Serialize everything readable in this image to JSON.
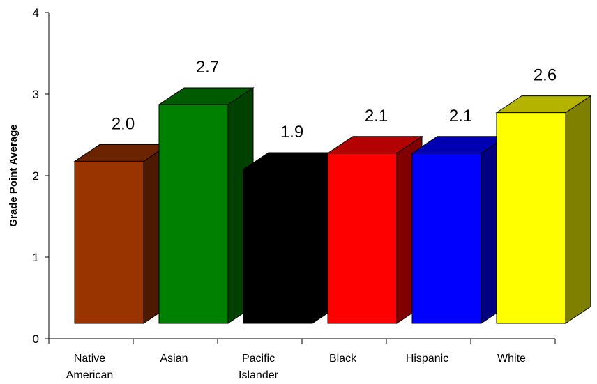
{
  "chart_data": {
    "type": "bar",
    "title": "",
    "xlabel": "",
    "ylabel": "Grade Point Average",
    "ylim": [
      0,
      4
    ],
    "yticks": [
      "0",
      "1",
      "2",
      "3",
      "4"
    ],
    "grid": false,
    "legend": "none",
    "style": "3d",
    "categories": [
      [
        "Native",
        "American"
      ],
      [
        "Asian"
      ],
      [
        "Pacific",
        "Islander"
      ],
      [
        "Black"
      ],
      [
        "Hispanic"
      ],
      [
        "White"
      ]
    ],
    "values": [
      2.0,
      2.7,
      1.9,
      2.1,
      2.1,
      2.6
    ],
    "data_labels": [
      "2.0",
      "2.7",
      "1.9",
      "2.1",
      "2.1",
      "2.6"
    ],
    "colors": [
      {
        "front": "#993300",
        "top": "#6b2300",
        "side": "#4d1900"
      },
      {
        "front": "#008000",
        "top": "#005a00",
        "side": "#004000"
      },
      {
        "front": "#000000",
        "top": "#000000",
        "side": "#000000"
      },
      {
        "front": "#ff0000",
        "top": "#b30000",
        "side": "#800000"
      },
      {
        "front": "#0000ff",
        "top": "#0000b3",
        "side": "#000080"
      },
      {
        "front": "#ffff00",
        "top": "#b3b300",
        "side": "#808000"
      }
    ]
  }
}
